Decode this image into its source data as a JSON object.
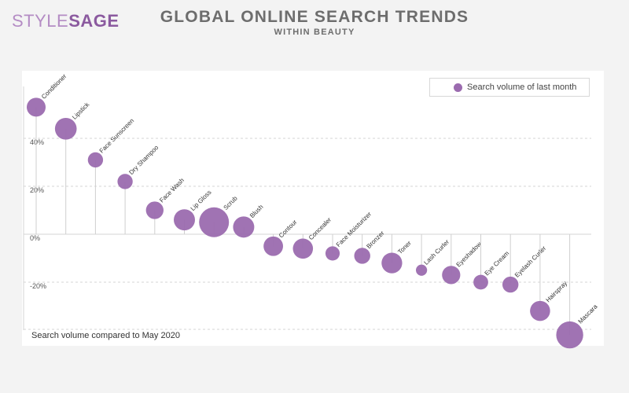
{
  "header": {
    "logo_part1": "STYLE",
    "logo_part2": "SAGE",
    "title": "GLOBAL ONLINE SEARCH TRENDS",
    "subtitle": "WITHIN BEAUTY"
  },
  "legend": {
    "label": "Search volume of last month"
  },
  "note": "Search volume compared to May 2020",
  "colors": {
    "bubble": "#9b6baf",
    "grid": "#d6d6d6",
    "stem": "#cfcfcf",
    "background": "#f3f3f3"
  },
  "chart_data": {
    "type": "scatter",
    "ylabel": "Search volume compared to May 2020",
    "ylim": [
      -42,
      54
    ],
    "yticks": [
      {
        "value": 40,
        "label": "40%"
      },
      {
        "value": 20,
        "label": "20%"
      },
      {
        "value": 0,
        "label": "0%"
      },
      {
        "value": -20,
        "label": "-20%"
      }
    ],
    "grid": true,
    "legend_position": "top-right",
    "series": [
      {
        "name": "Search volume of last month",
        "points": [
          {
            "label": "Conditioner",
            "y": 53,
            "size": 2
          },
          {
            "label": "Lipstick",
            "y": 44,
            "size": 3
          },
          {
            "label": "Face Sunscreen",
            "y": 31,
            "size": 1
          },
          {
            "label": "Dry Shampoo",
            "y": 22,
            "size": 1
          },
          {
            "label": "Face Wash",
            "y": 10,
            "size": 1.6
          },
          {
            "label": "Lip Gloss",
            "y": 6,
            "size": 2.8
          },
          {
            "label": "Scrub",
            "y": 5,
            "size": 7
          },
          {
            "label": "Blush",
            "y": 3,
            "size": 2.8
          },
          {
            "label": "Contour",
            "y": -5,
            "size": 2.2
          },
          {
            "label": "Concealer",
            "y": -6,
            "size": 2.4
          },
          {
            "label": "Face Moisturizer",
            "y": -8,
            "size": 0.8
          },
          {
            "label": "Bronzer",
            "y": -9,
            "size": 1.2
          },
          {
            "label": "Toner",
            "y": -12,
            "size": 2.6
          },
          {
            "label": "Lash Curler",
            "y": -15,
            "size": 0.3
          },
          {
            "label": "Eyeshadow",
            "y": -17,
            "size": 1.8
          },
          {
            "label": "Eye Cream",
            "y": -20,
            "size": 0.9
          },
          {
            "label": "Eyelash Curler",
            "y": -21,
            "size": 1.2
          },
          {
            "label": "Hairspray",
            "y": -32,
            "size": 2.4
          },
          {
            "label": "Mascara",
            "y": -42,
            "size": 5.4
          }
        ]
      }
    ]
  }
}
